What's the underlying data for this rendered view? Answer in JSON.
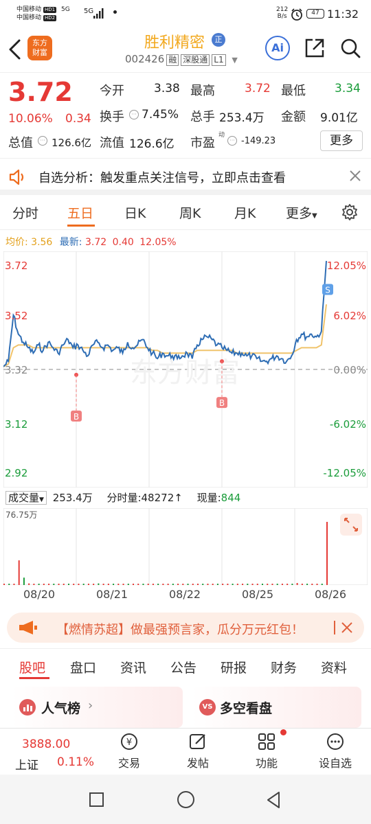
{
  "statusbar": {
    "carrier1": "中国移动",
    "carrier1_tag": "HD1",
    "carrier1_net": "5G",
    "carrier2": "中国移动",
    "carrier2_tag": "HD2",
    "net2": "5G",
    "speed_value": "212",
    "speed_unit": "B/s",
    "battery": "47",
    "time": "11:32"
  },
  "header": {
    "logo_line1": "东方",
    "logo_line2": "财富",
    "stock_name": "胜利精密",
    "badge": "正",
    "stock_code": "002426",
    "tag_rong": "融",
    "tag_connect": "深股通",
    "tag_level": "L1",
    "ai_label": "Ai"
  },
  "quote": {
    "price": "3.72",
    "change_pct": "10.06%",
    "change_abs": "0.34",
    "open_label": "今开",
    "open": "3.38",
    "high_label": "最高",
    "high": "3.72",
    "low_label": "最低",
    "low": "3.34",
    "turnover_label": "换手",
    "turnover": "7.45%",
    "volume_label": "总手",
    "volume": "253.4万",
    "amount_label": "金额",
    "amount": "9.01亿",
    "mktcap_label": "总值",
    "mktcap": "126.6亿",
    "float_label": "流值",
    "float": "126.6亿",
    "pe_label": "市盈",
    "pe_sup": "动",
    "pe": "-149.23",
    "more_button": "更多"
  },
  "notice": {
    "text": "自选分析：触发重点关注信号，立即点击查看"
  },
  "tabs": [
    {
      "label": "分时"
    },
    {
      "label": "五日"
    },
    {
      "label": "日K"
    },
    {
      "label": "周K"
    },
    {
      "label": "月K"
    },
    {
      "label": "更多"
    }
  ],
  "legend": {
    "avg_label": "均价:",
    "avg_value": "3.56",
    "latest_label": "最新:",
    "latest_value": "3.72",
    "latest_change": "0.40",
    "latest_pct": "12.05%"
  },
  "chart_data": {
    "type": "line",
    "title": "",
    "x_labels": [
      "08/20",
      "08/21",
      "08/22",
      "08/25",
      "08/26"
    ],
    "y_left_ticks": [
      "3.72",
      "3.52",
      "3.32",
      "3.12",
      "2.92"
    ],
    "y_right_ticks": [
      "12.05%",
      "6.02%",
      "0.00%",
      "-6.02%",
      "-12.05%"
    ],
    "ylim": [
      2.92,
      3.72
    ],
    "base_price": 3.32,
    "markers": [
      {
        "label": "B",
        "day": "08/20",
        "price": 3.3
      },
      {
        "label": "B",
        "day": "08/22",
        "price": 3.35
      },
      {
        "label": "S",
        "day": "08/26",
        "price": 3.62
      }
    ],
    "series": [
      {
        "name": "price",
        "values": [
          3.33,
          3.35,
          3.52,
          3.45,
          3.42,
          3.4,
          3.38,
          3.41,
          3.39,
          3.42,
          3.4,
          3.38,
          3.41,
          3.43,
          3.4,
          3.41,
          3.39,
          3.37,
          3.41,
          3.42,
          3.4,
          3.41,
          3.39,
          3.4,
          3.38,
          3.42,
          3.4,
          3.41,
          3.43,
          3.4,
          3.38,
          3.36,
          3.38,
          3.37,
          3.37,
          3.36,
          3.37,
          3.38,
          3.36,
          3.41,
          3.43,
          3.44,
          3.43,
          3.41,
          3.4,
          3.39,
          3.38,
          3.38,
          3.38,
          3.37,
          3.37,
          3.36,
          3.35,
          3.35,
          3.36,
          3.37,
          3.36,
          3.35,
          3.37,
          3.43,
          3.45,
          3.44,
          3.45,
          3.44,
          3.46,
          3.72
        ]
      },
      {
        "name": "avg",
        "values": [
          3.33,
          3.34,
          3.4,
          3.41,
          3.41,
          3.41,
          3.4,
          3.4,
          3.4,
          3.4,
          3.4,
          3.4,
          3.4,
          3.4,
          3.4,
          3.4,
          3.4,
          3.4,
          3.4,
          3.4,
          3.4,
          3.4,
          3.4,
          3.4,
          3.4,
          3.4,
          3.4,
          3.4,
          3.4,
          3.4,
          3.39,
          3.39,
          3.38,
          3.38,
          3.38,
          3.38,
          3.38,
          3.38,
          3.38,
          3.39,
          3.39,
          3.39,
          3.39,
          3.39,
          3.39,
          3.39,
          3.39,
          3.38,
          3.38,
          3.38,
          3.38,
          3.38,
          3.38,
          3.38,
          3.38,
          3.38,
          3.38,
          3.38,
          3.38,
          3.39,
          3.4,
          3.4,
          3.4,
          3.4,
          3.41,
          3.56
        ]
      }
    ]
  },
  "volume_header": {
    "dropdown_label": "成交量",
    "volume": "253.4万",
    "minute_label": "分时量:",
    "minute_value": "48272",
    "current_label": "现量:",
    "current_value": "844",
    "max_label": "76.75万"
  },
  "volume_data": {
    "type": "bar",
    "max": 767500,
    "values": [
      4000,
      8000,
      12000,
      300000,
      90000,
      20000,
      8000,
      6000,
      5000,
      7000,
      9000,
      6000,
      5000,
      8000,
      12000,
      6000,
      5000,
      4000,
      6000,
      20000,
      9000,
      5000,
      5000,
      7000,
      4000,
      8000,
      5000,
      6000,
      10000,
      5000,
      4000,
      4000,
      5000,
      7000,
      4000,
      3000,
      4000,
      5000,
      3000,
      9000,
      12000,
      6000,
      5000,
      4000,
      4000,
      4000,
      3000,
      4000,
      4000,
      3000,
      4000,
      3000,
      3000,
      3000,
      4000,
      5000,
      4000,
      3000,
      5000,
      25000,
      15000,
      8000,
      7000,
      6000,
      9000,
      767500
    ]
  },
  "banner": {
    "text": "【燃情苏超】做最强预言家，瓜分万元红包！"
  },
  "sub_tabs": [
    {
      "label": "股吧"
    },
    {
      "label": "盘口"
    },
    {
      "label": "资讯"
    },
    {
      "label": "公告"
    },
    {
      "label": "研报"
    },
    {
      "label": "财务"
    },
    {
      "label": "资料"
    }
  ],
  "cards": {
    "card1": "人气榜",
    "card2": "多空看盘"
  },
  "bottom_nav": {
    "index_value": "3888.00",
    "index_name": "上证",
    "index_change": "0.11%",
    "items": [
      {
        "label": "交易"
      },
      {
        "label": "发帖"
      },
      {
        "label": "功能"
      },
      {
        "label": "设自选"
      }
    ]
  }
}
